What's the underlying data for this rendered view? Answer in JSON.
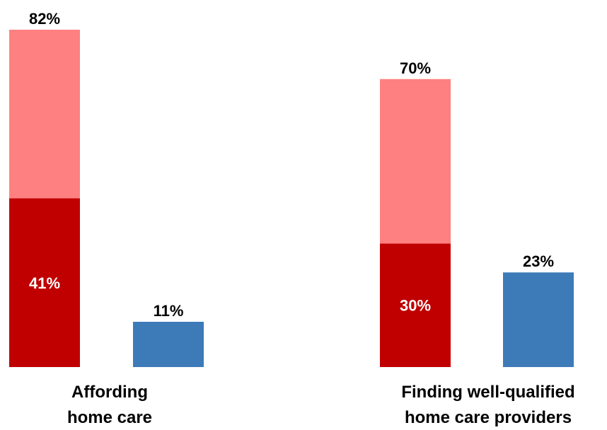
{
  "chart_data": {
    "type": "bar",
    "categories": [
      [
        "Affording",
        "home care"
      ],
      [
        "Finding well-qualified",
        "home care providers"
      ]
    ],
    "groups": [
      {
        "stacked": {
          "total": 82,
          "lower": 41,
          "total_label": "82%",
          "lower_label": "41%"
        },
        "single": {
          "value": 11,
          "label": "11%"
        }
      },
      {
        "stacked": {
          "total": 70,
          "lower": 30,
          "total_label": "70%",
          "lower_label": "30%"
        },
        "single": {
          "value": 23,
          "label": "23%"
        }
      }
    ],
    "ylim": [
      0,
      82
    ],
    "grid": false,
    "colors": {
      "stacked_upper": "#ff8080",
      "stacked_lower": "#c00000",
      "single": "#3d7ab8"
    }
  }
}
